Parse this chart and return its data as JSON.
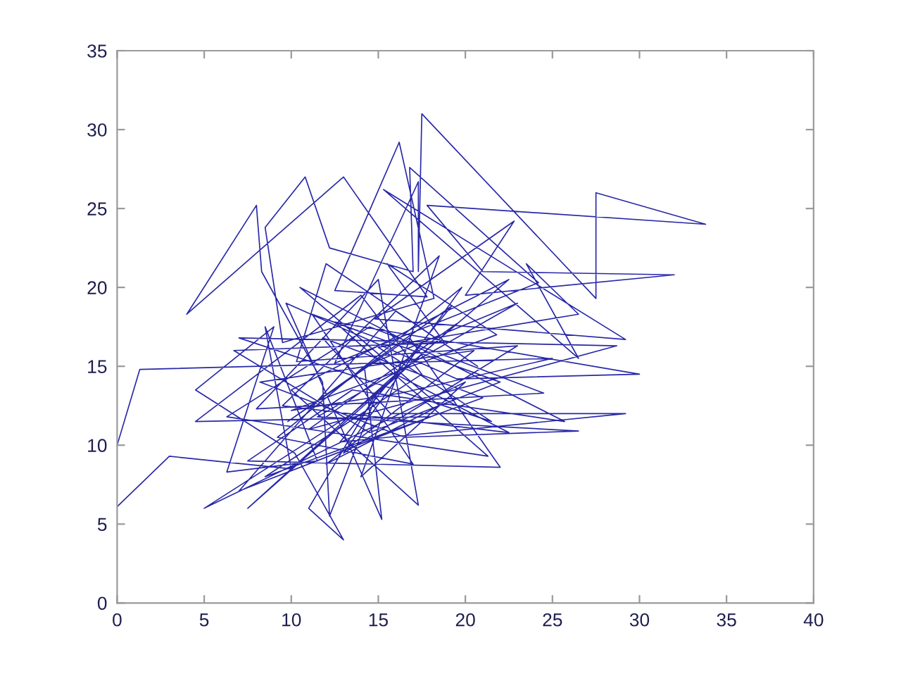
{
  "chart_data": {
    "type": "line",
    "color": "#2828a8",
    "x": [
      0,
      3,
      10,
      8.5,
      11.5,
      6.3,
      9,
      4.5,
      10.2,
      13,
      11,
      15,
      12.2,
      11.8,
      8.3,
      8,
      4,
      13,
      17.8,
      12.5,
      16.2,
      18.2,
      9.5,
      8.5,
      10.8,
      12.2,
      17,
      16.8,
      24.2,
      12.5,
      17.3,
      17.3,
      17.5,
      27.5,
      27.5,
      33.8,
      17.8,
      21,
      32,
      20,
      22.8,
      14.8,
      29.2,
      15.3,
      26.5,
      23.5,
      26.5,
      15,
      21.5,
      7,
      28.7,
      11,
      19.5,
      7.5,
      16,
      22.5,
      9.5,
      18.5,
      14,
      20,
      5,
      13.5,
      22.5,
      10,
      17.3,
      15,
      8,
      24.5,
      14.5,
      6.3,
      21.3,
      12.5,
      30,
      19.5,
      9.7,
      15.2,
      14.2,
      23,
      11.5,
      26.5,
      16.5,
      8.2,
      20.5,
      12,
      18.5,
      10.5,
      25.7,
      13.5,
      7.5,
      22,
      16.8,
      9.8,
      19.2,
      12.8,
      29.2,
      15.7,
      11.8,
      21,
      8.5,
      17.5,
      14,
      4.5,
      18,
      7,
      16,
      20.7,
      12,
      10.3,
      23,
      13,
      19.8,
      9.2,
      17,
      11.2,
      22,
      14.5,
      6.7,
      18.8,
      15.5,
      21.8,
      10,
      16.3,
      25,
      1.3,
      0
    ],
    "values": [
      6.1,
      9.3,
      8.5,
      17.5,
      9,
      8.3,
      17.5,
      13.5,
      9.5,
      4,
      6,
      13.5,
      5.5,
      14,
      21,
      25.2,
      18.3,
      27,
      19.4,
      19.8,
      29.2,
      19.3,
      16.5,
      23.8,
      27,
      22.5,
      21,
      27.6,
      20.3,
      15.2,
      26.7,
      21,
      31,
      19.3,
      26,
      24,
      25.2,
      21,
      20.8,
      19.5,
      24.2,
      18,
      16.7,
      26.2,
      15.5,
      21.5,
      18.3,
      16.2,
      11.5,
      16.8,
      16.3,
      11,
      17.7,
      6,
      14.5,
      10.8,
      12.5,
      22,
      8,
      14,
      6,
      12,
      20.5,
      13.5,
      6.2,
      20.5,
      12.3,
      13.3,
      17.5,
      11.8,
      9.3,
      17.8,
      14.5,
      14.2,
      19,
      5.3,
      15,
      19,
      11.8,
      10.9,
      10.5,
      14,
      16,
      8.8,
      12.5,
      20,
      11.5,
      13.5,
      9,
      8.6,
      16.8,
      11.5,
      18.8,
      10.2,
      12,
      12,
      16.8,
      13,
      8,
      14.5,
      19.5,
      11.5,
      11.8,
      7.1,
      18.5,
      15,
      21.5,
      15.3,
      16.3,
      9.5,
      20,
      10.5,
      8.8,
      18.3,
      14,
      10.8,
      16,
      16.5,
      21.5,
      17,
      12.2,
      13.3,
      15.5,
      14.8,
      10
    ],
    "xlim": [
      0,
      40
    ],
    "ylim": [
      0,
      35
    ],
    "xticks": [
      0,
      5,
      10,
      15,
      20,
      25,
      30,
      35,
      40
    ],
    "yticks": [
      0,
      5,
      10,
      15,
      20,
      25,
      30,
      35
    ]
  }
}
